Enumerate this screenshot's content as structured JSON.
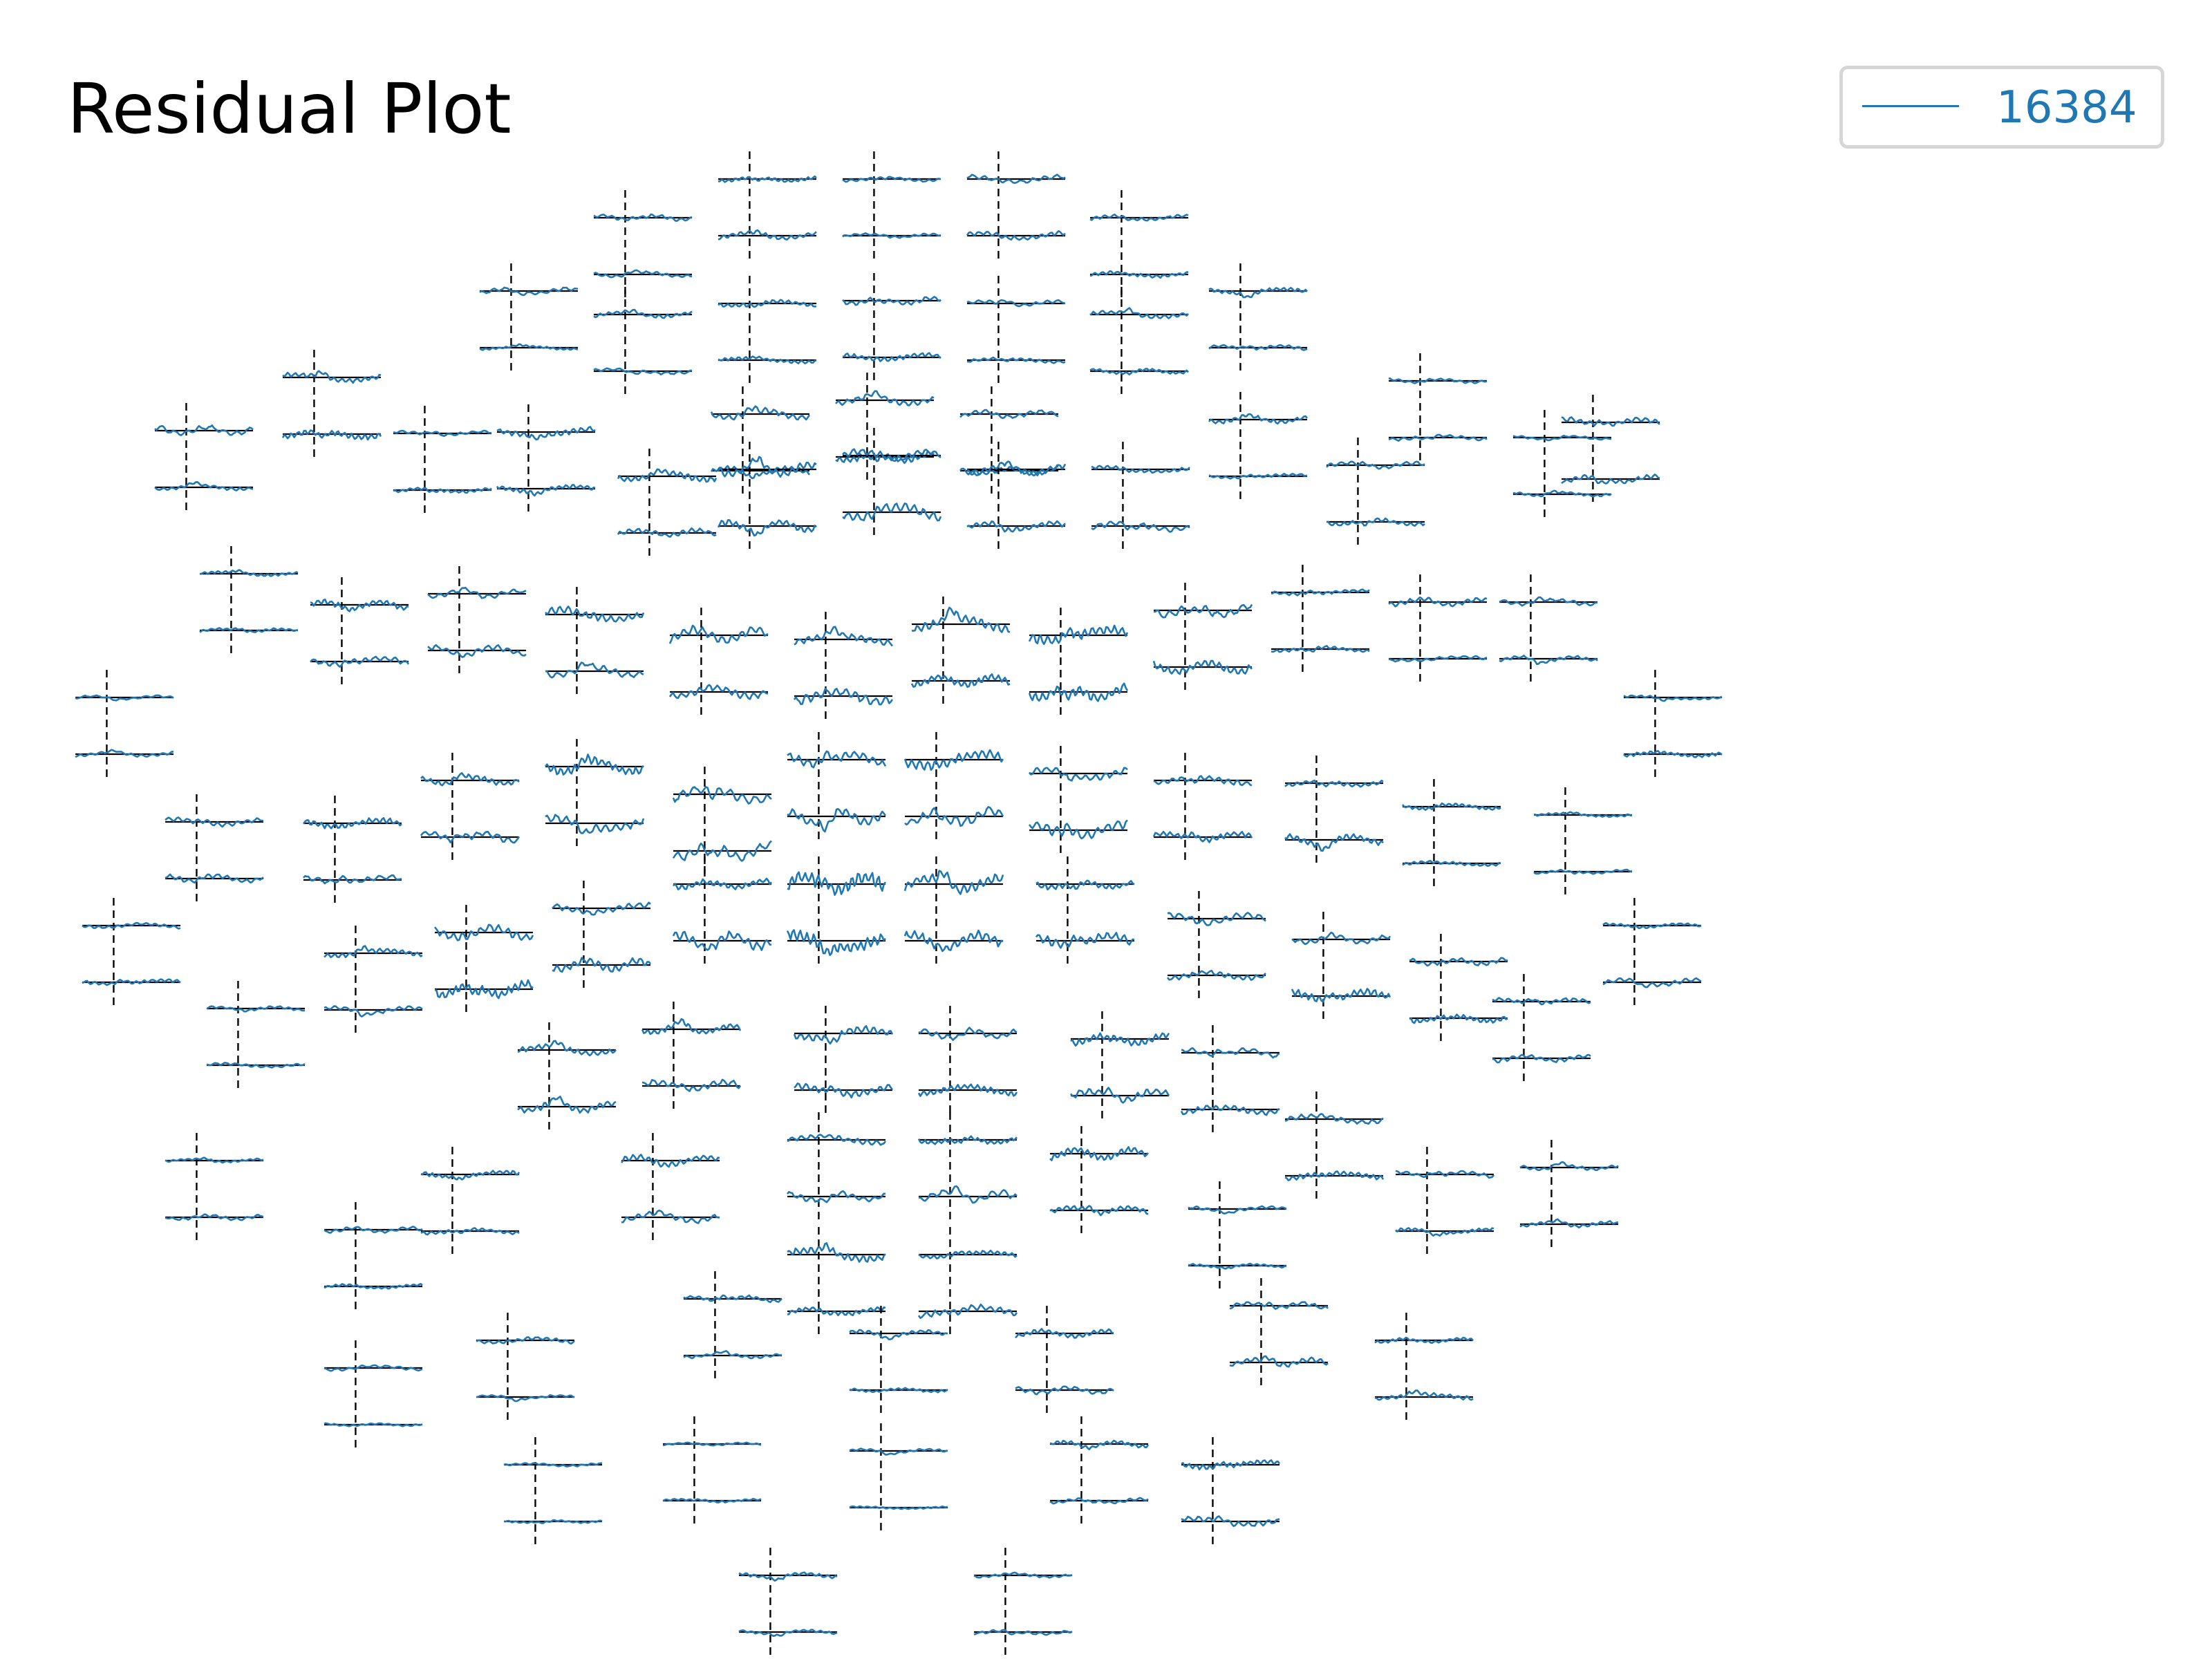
{
  "title": "Residual Plot",
  "legend": {
    "label": "16384",
    "color": "#1f77b4"
  },
  "colors": {
    "trace": "#1f77b4",
    "baseline": "#000000",
    "event_marker": "#000000"
  },
  "chart_data": {
    "type": "line",
    "title": "Residual Plot",
    "xlabel": "",
    "ylabel": "",
    "grid": false,
    "axes_visible": false,
    "legend_position": "top-right",
    "series": [
      {
        "name": "16384",
        "color": "#1f77b4"
      }
    ],
    "channel_layout": "sensor-topographic",
    "traces_per_sensor": 2,
    "sensor_count": 102,
    "event_marker": "dashed vertical line at time zero",
    "amplitude_pattern": "small residual oscillations around zero; larger deflections near the center and left of the layout"
  }
}
